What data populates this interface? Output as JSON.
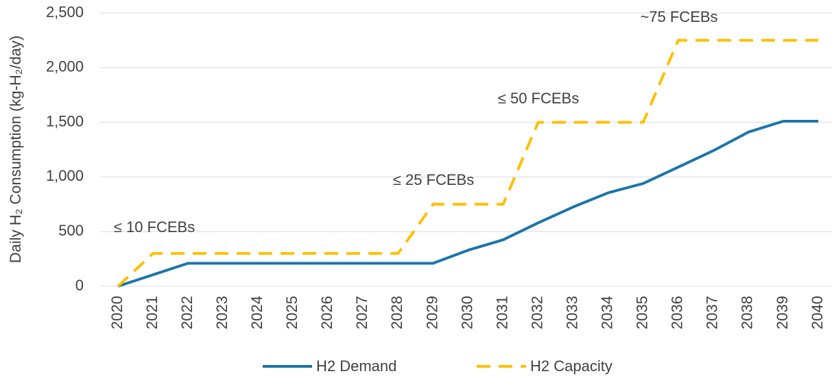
{
  "chart_data": {
    "type": "line",
    "y_label": "Daily H₂ Consumption (kg-H₂/day)",
    "categories": [
      "2020",
      "2021",
      "2022",
      "2023",
      "2024",
      "2025",
      "2026",
      "2027",
      "2028",
      "2029",
      "2030",
      "2031",
      "2032",
      "2033",
      "2034",
      "2035",
      "2036",
      "2037",
      "2038",
      "2039",
      "2040"
    ],
    "series": [
      {
        "name": "H2 Demand",
        "color": "#1b75a8",
        "dash": false,
        "values": [
          0,
          105,
          210,
          210,
          210,
          210,
          210,
          210,
          210,
          210,
          330,
          425,
          580,
          725,
          855,
          940,
          1090,
          1240,
          1410,
          1510,
          1510
        ]
      },
      {
        "name": "H2 Capacity",
        "color": "#ffc000",
        "dash": true,
        "values": [
          0,
          300,
          300,
          300,
          300,
          300,
          300,
          300,
          300,
          750,
          750,
          750,
          1500,
          1500,
          1500,
          1500,
          2250,
          2250,
          2250,
          2250,
          2250
        ]
      }
    ],
    "annotations": [
      "≤ 10 FCEBs",
      "≤ 25 FCEBs",
      "≤ 50 FCEBs",
      "~75 FCEBs"
    ],
    "ylim": [
      0,
      2500
    ],
    "yticks": [
      0,
      500,
      {
        "value": 1000,
        "label": "1,000"
      },
      {
        "value": 1500,
        "label": "1,500"
      },
      {
        "value": 2000,
        "label": "2,000"
      },
      {
        "value": 2500,
        "label": "2,500"
      }
    ],
    "grid": true,
    "legend": "bottom"
  }
}
